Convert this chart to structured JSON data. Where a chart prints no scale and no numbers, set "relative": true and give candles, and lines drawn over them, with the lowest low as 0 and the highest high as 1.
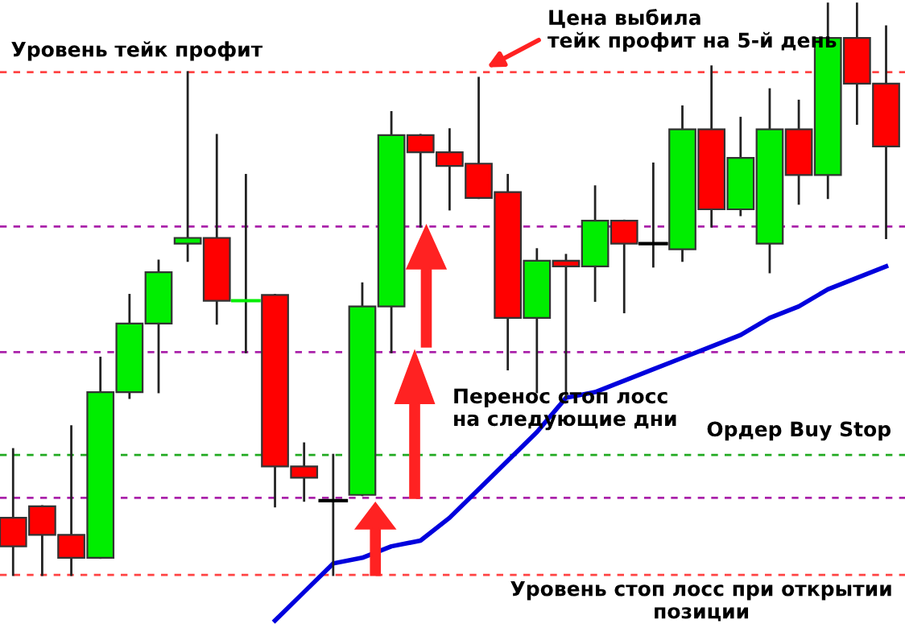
{
  "chart_data": {
    "type": "candlestick",
    "relative": true,
    "categories": [
      null,
      null,
      null,
      null,
      null,
      null,
      null,
      null,
      null,
      null,
      null,
      null,
      null,
      null,
      null,
      null,
      null,
      null,
      null,
      null,
      null,
      null,
      null,
      null,
      null,
      null,
      null,
      null,
      null,
      null,
      null
    ],
    "ohlc": [
      [
        0.1,
        0.22,
        0,
        0.05
      ],
      [
        0.12,
        0.12,
        0,
        0.07
      ],
      [
        0.07,
        0.26,
        0,
        0.03
      ],
      [
        0.03,
        0.38,
        0.03,
        0.32
      ],
      [
        0.32,
        0.49,
        0.31,
        0.44
      ],
      [
        0.44,
        0.55,
        0.32,
        0.53
      ],
      [
        0.58,
        0.88,
        0.55,
        0.59
      ],
      [
        0.59,
        0.77,
        0.44,
        0.48
      ],
      [
        0.48,
        0.7,
        0.39,
        0.48
      ],
      [
        0.49,
        0.49,
        0.12,
        0.19
      ],
      [
        0.19,
        0.23,
        0.13,
        0.17
      ],
      [
        0.13,
        0.21,
        0,
        0.13
      ],
      [
        0.14,
        0.51,
        0.14,
        0.47
      ],
      [
        0.47,
        0.81,
        0.39,
        0.77
      ],
      [
        0.77,
        0.77,
        0.61,
        0.74
      ],
      [
        0.74,
        0.78,
        0.64,
        0.716
      ],
      [
        0.72,
        0.87,
        0.66,
        0.66
      ],
      [
        0.67,
        0.7,
        0.36,
        0.45
      ],
      [
        0.45,
        0.57,
        0.32,
        0.55
      ],
      [
        0.55,
        0.56,
        0.31,
        0.54
      ],
      [
        0.54,
        0.68,
        0.48,
        0.62
      ],
      [
        0.62,
        0.62,
        0.46,
        0.58
      ],
      [
        0.58,
        0.72,
        0.54,
        0.58
      ],
      [
        0.57,
        0.82,
        0.55,
        0.78
      ],
      [
        0.78,
        0.89,
        0.61,
        0.64
      ],
      [
        0.64,
        0.8,
        0.63,
        0.73
      ],
      [
        0.58,
        0.85,
        0.53,
        0.78
      ],
      [
        0.78,
        0.83,
        0.65,
        0.7
      ],
      [
        0.7,
        1.0,
        0.66,
        0.94
      ],
      [
        0.94,
        1.0,
        0.79,
        0.86
      ],
      [
        0.86,
        0.96,
        0.59,
        0.75
      ]
    ],
    "colors": [
      "#ff0000",
      "#ff0000",
      "#ff0000",
      "#00ee00",
      "#00ee00",
      "#00ee00",
      "#00ee00",
      "#ff0000",
      "#00ee00",
      "#ff0000",
      "#ff0000",
      "#000000",
      "#00ee00",
      "#00ee00",
      "#ff0000",
      "#ff0000",
      "#ff0000",
      "#ff0000",
      "#00ee00",
      "#ff0000",
      "#00ee00",
      "#ff0000",
      "#000000",
      "#00ee00",
      "#ff0000",
      "#00ee00",
      "#00ee00",
      "#ff0000",
      "#00ee00",
      "#ff0000",
      "#ff0000"
    ],
    "series": [
      {
        "type": "line",
        "color": "#0000dd",
        "values": [
          null,
          null,
          null,
          null,
          null,
          null,
          null,
          null,
          null,
          -0.08,
          -0.03,
          0.02,
          0.03,
          0.05,
          0.06,
          0.1,
          0.15,
          0.2,
          0.25,
          0.31,
          0.32,
          0.34,
          0.36,
          0.38,
          0.4,
          0.42,
          0.45,
          0.47,
          0.5,
          0.52,
          0.54
        ]
      }
    ],
    "ref_lines": [
      {
        "axis": "y",
        "value": 0.88,
        "label": "Уровень тейк профит",
        "color": "#ff4444",
        "line_style": "dashed"
      },
      {
        "axis": "y",
        "value": 0.61,
        "color": "#aa22aa",
        "line_style": "dashed"
      },
      {
        "axis": "y",
        "value": 0.39,
        "color": "#aa22aa",
        "line_style": "dashed"
      },
      {
        "axis": "y",
        "value": 0.21,
        "label": "Ордер Buy Stop",
        "color": "#22aa22",
        "line_style": "dashed"
      },
      {
        "axis": "y",
        "value": 0.135,
        "color": "#aa22aa",
        "line_style": "dashed"
      },
      {
        "axis": "y",
        "value": 0,
        "label": "Уровень стоп лосс при открытии позиции",
        "color": "#ff4444",
        "line_style": "dashed"
      }
    ],
    "annotations": [
      "Цена выбила\nтейк профит на 5-й день",
      "Перенос стоп лосс\nна следующие дни"
    ]
  }
}
